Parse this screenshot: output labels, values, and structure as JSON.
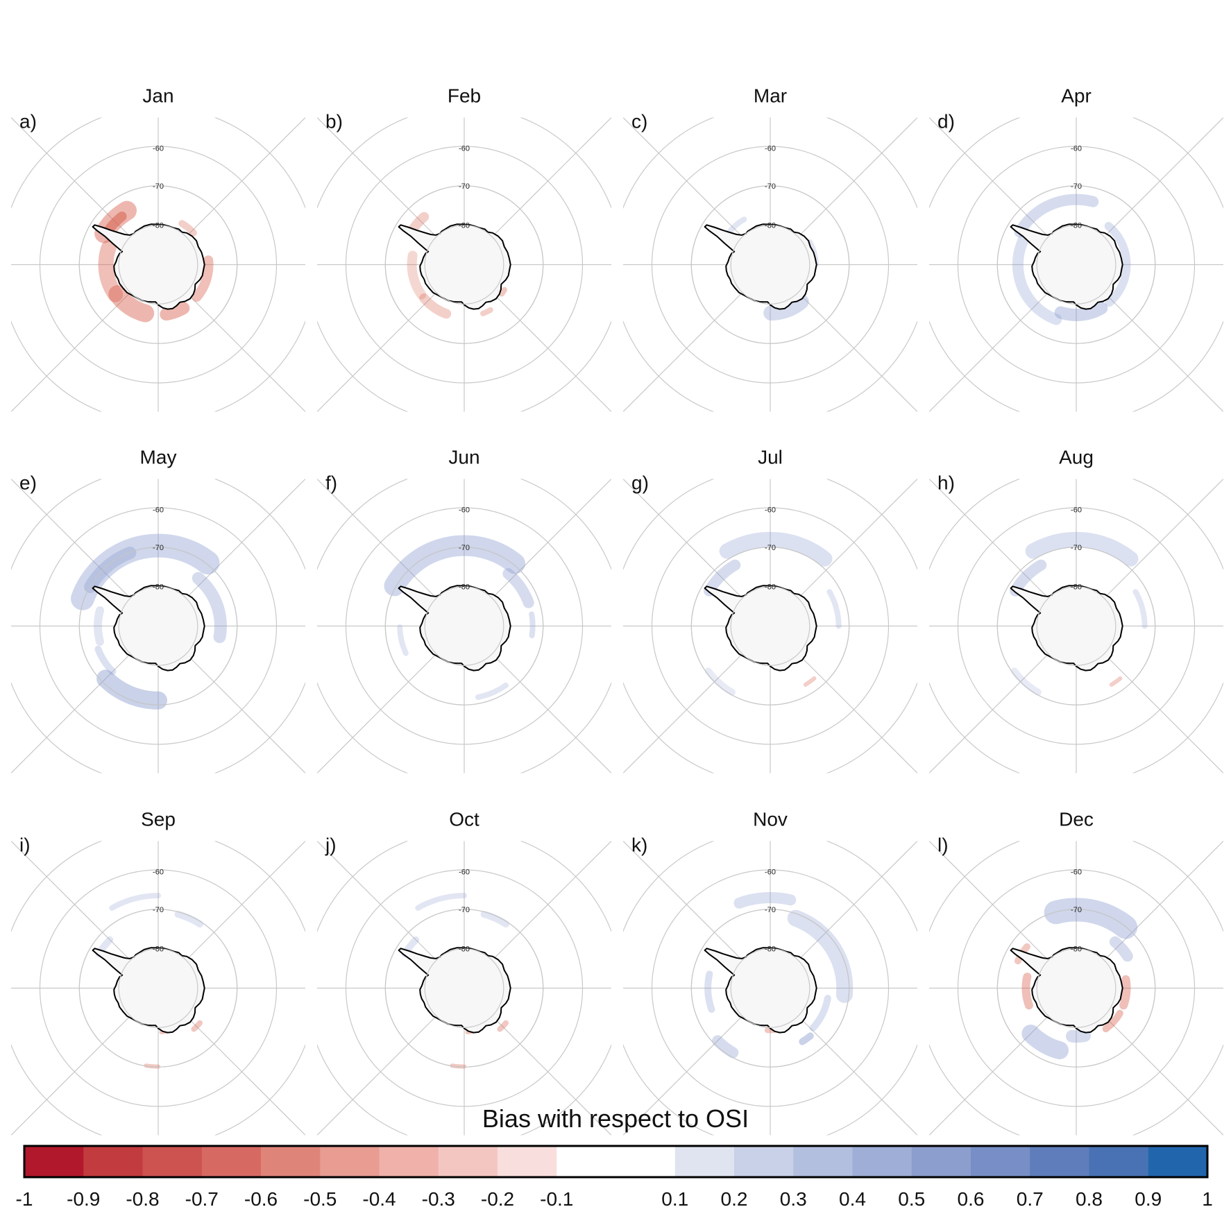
{
  "panels": [
    {
      "month": "Jan",
      "tag": "a)",
      "pattern": "red_strong"
    },
    {
      "month": "Feb",
      "tag": "b)",
      "pattern": "red_light"
    },
    {
      "month": "Mar",
      "tag": "c)",
      "pattern": "blue_faint"
    },
    {
      "month": "Apr",
      "tag": "d)",
      "pattern": "blue_ring"
    },
    {
      "month": "May",
      "tag": "e)",
      "pattern": "blue_wide"
    },
    {
      "month": "Jun",
      "tag": "f)",
      "pattern": "blue_north"
    },
    {
      "month": "Jul",
      "tag": "g)",
      "pattern": "blue_north_faint"
    },
    {
      "month": "Aug",
      "tag": "h)",
      "pattern": "blue_north_faint"
    },
    {
      "month": "Sep",
      "tag": "i)",
      "pattern": "sparse"
    },
    {
      "month": "Oct",
      "tag": "j)",
      "pattern": "sparse"
    },
    {
      "month": "Nov",
      "tag": "k)",
      "pattern": "blue_east"
    },
    {
      "month": "Dec",
      "tag": "l)",
      "pattern": "mixed"
    }
  ],
  "latitude_labels": [
    "-60",
    "-70",
    "-80"
  ],
  "colorbar": {
    "title": "Bias with respect to OSI",
    "tick_labels": [
      "-1",
      "-0.9",
      "-0.8",
      "-0.7",
      "-0.6",
      "-0.5",
      "-0.4",
      "-0.3",
      "-0.2",
      "-0.1",
      "0.1",
      "0.2",
      "0.3",
      "0.4",
      "0.5",
      "0.6",
      "0.7",
      "0.8",
      "0.9",
      "1"
    ],
    "colors": [
      "#b2182b",
      "#c23b3e",
      "#cc5350",
      "#d66a63",
      "#df8479",
      "#e89c92",
      "#efb1aa",
      "#f4c6c2",
      "#f8dedc",
      "#ffffff",
      "#ffffff",
      "#dfe4f0",
      "#c8d1e7",
      "#b3bfdf",
      "#9eaed7",
      "#8b9ece",
      "#778fc6",
      "#5f7dbb",
      "#4872b4",
      "#2166ac"
    ]
  },
  "colors": {
    "land": "#f7f7f7",
    "coast": "#000000",
    "grid": "#c8c8c8",
    "red": "#d6604d",
    "blue": "#8a9ccf"
  }
}
